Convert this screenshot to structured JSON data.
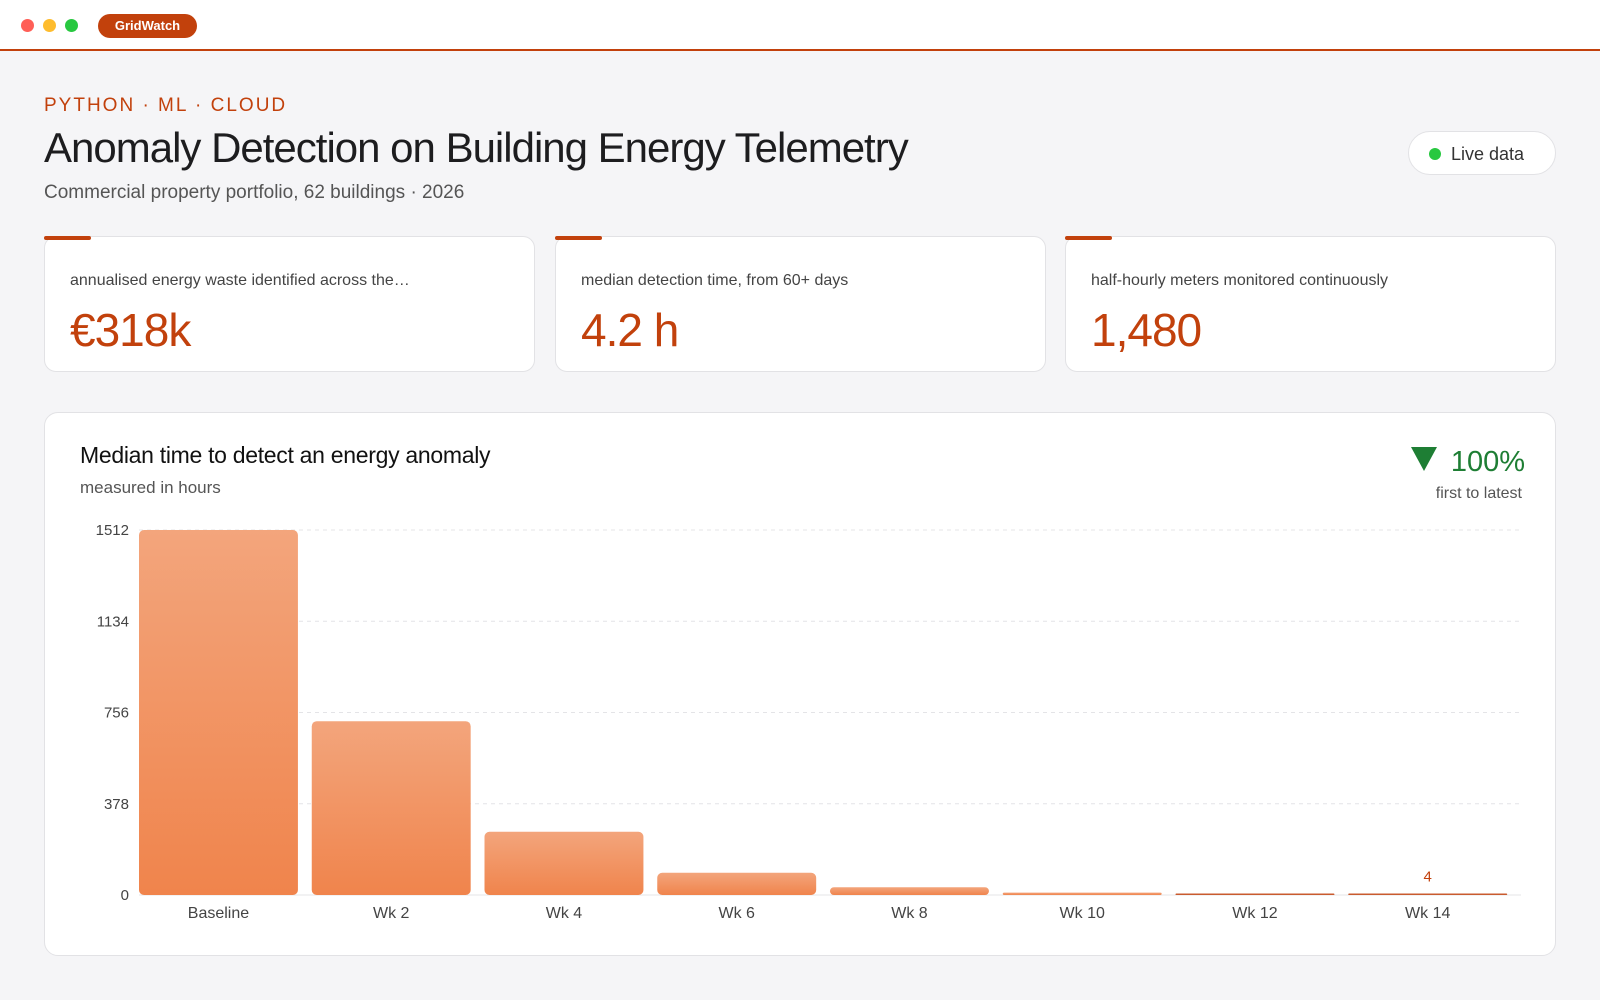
{
  "window": {
    "app_name": "GridWatch"
  },
  "header": {
    "eyebrow": "PYTHON · ML · CLOUD",
    "title": "Anomaly Detection on Building Energy Telemetry",
    "subtitle": "Commercial property portfolio, 62 buildings · 2026",
    "live_label": "Live data"
  },
  "stats": [
    {
      "label": "annualised energy waste identified across the…",
      "value": "€318k"
    },
    {
      "label": "median detection time, from 60+ days",
      "value": "4.2 h"
    },
    {
      "label": "half-hourly meters monitored continuously",
      "value": "1,480"
    }
  ],
  "chart_header": {
    "delta_icon": "down-triangle-icon",
    "delta_value": "100%",
    "delta_caption": "first to latest"
  },
  "colors": {
    "accent": "#c2410c",
    "bar_top": "#f3a57c",
    "bar_bottom": "#f0844c",
    "positive": "#1e7e34",
    "live": "#28c840"
  },
  "chart_data": {
    "type": "bar",
    "title": "Median time to detect an energy anomaly",
    "subtitle": "measured in hours",
    "categories": [
      "Baseline",
      "Wk 2",
      "Wk 4",
      "Wk 6",
      "Wk 8",
      "Wk 10",
      "Wk 12",
      "Wk 14"
    ],
    "values": [
      1512,
      720,
      262,
      92,
      32,
      10,
      5,
      4
    ],
    "ylim": [
      0,
      1512
    ],
    "yticks": [
      "0",
      "378",
      "756",
      "1134",
      "1512"
    ],
    "ytick_values": [
      0,
      378,
      756,
      1134,
      1512
    ],
    "value_labels": [
      "",
      "",
      "",
      "",
      "",
      "",
      "",
      "4"
    ],
    "grid": true
  }
}
